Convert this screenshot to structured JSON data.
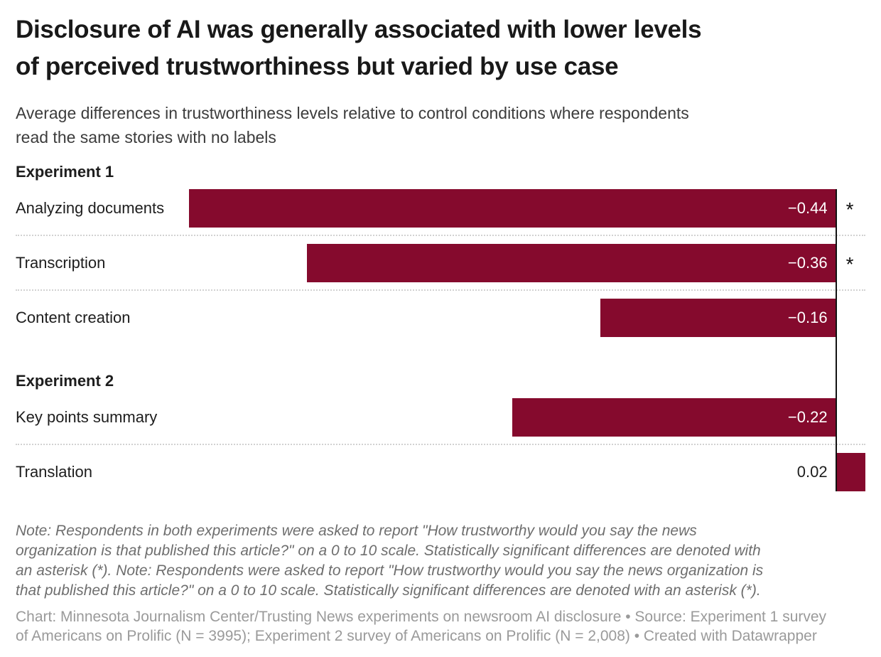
{
  "header": {
    "title_lines": [
      "Disclosure of AI was generally associated with lower levels",
      "of perceived trustworthiness but varied by use case"
    ],
    "subtitle_lines": [
      "Average differences in trustworthiness levels relative to control conditions where respondents",
      "read the same stories with no labels"
    ]
  },
  "chart_data": {
    "type": "bar",
    "orientation": "horizontal",
    "title": "Disclosure of AI was generally associated with lower levels of perceived trustworthiness but varied by use case",
    "subtitle": "Average differences in trustworthiness levels relative to control conditions where respondents read the same stories with no labels",
    "value_domain": [
      -0.44,
      0.02
    ],
    "grid": false,
    "legend": "none",
    "bar_color": "#850a2d",
    "zero_line_color": "#121212",
    "significance_marker": "*",
    "groups": [
      {
        "label": "Experiment 1",
        "rows": [
          {
            "category": "Analyzing documents",
            "value": -0.44,
            "value_label": "−0.44",
            "significant": true
          },
          {
            "category": "Transcription",
            "value": -0.36,
            "value_label": "−0.36",
            "significant": true
          },
          {
            "category": "Content creation",
            "value": -0.16,
            "value_label": "−0.16",
            "significant": false
          }
        ]
      },
      {
        "label": "Experiment 2",
        "rows": [
          {
            "category": "Key points summary",
            "value": -0.22,
            "value_label": "−0.22",
            "significant": false
          },
          {
            "category": "Translation",
            "value": 0.02,
            "value_label": "0.02",
            "significant": false
          }
        ]
      }
    ]
  },
  "footnote_lines": [
    "Note: Respondents in both experiments were asked to report \"How trustworthy would you say the news",
    "organization is that published this article?\" on a 0 to 10 scale. Statistically significant differences are denoted with",
    "an asterisk (*). Note: Respondents were asked to report \"How trustworthy would you say the news organization is",
    "that published this article?\" on a 0 to 10 scale. Statistically significant differences are denoted with an asterisk (*)."
  ],
  "attribution_lines": [
    "Chart: Minnesota Journalism Center/Trusting News experiments on newsroom AI disclosure • Source: Experiment 1 survey",
    "of Americans on Prolific (N = 3995); Experiment 2 survey of Americans on Prolific (N = 2,008) • Created with Datawrapper"
  ]
}
